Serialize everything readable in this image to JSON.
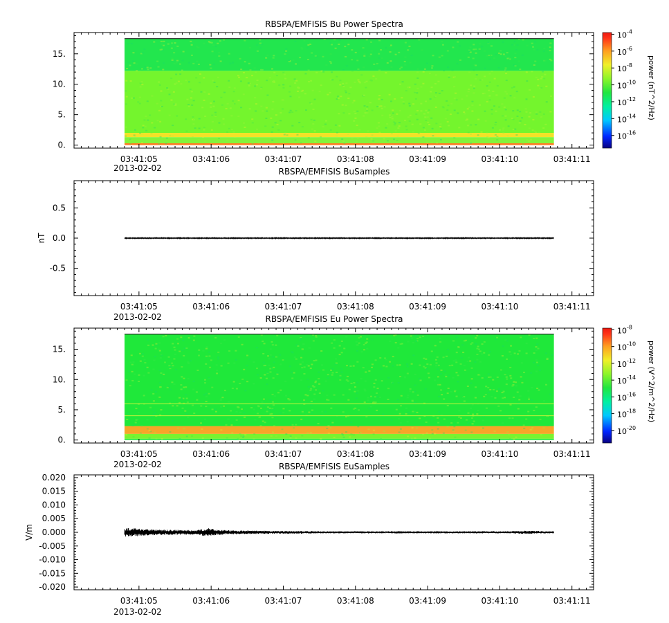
{
  "chart_data": [
    {
      "type": "heatmap",
      "title": "RBSPA/EMFISIS  Bu Power Spectra",
      "ylabel": "",
      "ylim": [
        -0.5,
        18.5
      ],
      "yticks": [
        0,
        5,
        10,
        15
      ],
      "ytick_labels": [
        "0.",
        "5.",
        "10.",
        "15."
      ],
      "x_range": [
        "03:41:04.1",
        "03:41:11.3"
      ],
      "data_x_range": [
        "03:41:04.8",
        "03:41:10.75"
      ],
      "data_y_range": [
        0,
        17.5
      ],
      "xtick_labels": [
        "03:41:05",
        "03:41:06",
        "03:41:07",
        "03:41:08",
        "03:41:09",
        "03:41:10",
        "03:41:11"
      ],
      "date_label": "2013-02-02",
      "colorbar": {
        "label": "power (nT^2/Hz)",
        "scale": "log",
        "range_exp": [
          -17.5,
          -3.8
        ],
        "tick_exponents": [
          -4,
          -6,
          -8,
          -10,
          -12,
          -14,
          -16
        ],
        "tick_labels": [
          "10",
          "10",
          "10",
          "10",
          "10",
          "10",
          "10"
        ],
        "tick_exponent_labels": [
          "-4",
          "-6",
          "-8",
          "-10",
          "-12",
          "-14",
          "-16"
        ]
      },
      "bands": [
        {
          "y_from": 12.2,
          "y_to": 17.5,
          "log_power": -12.6,
          "color": "#22e64e"
        },
        {
          "y_from": 2.0,
          "y_to": 12.2,
          "log_power": -10.6,
          "color": "#74f52d"
        },
        {
          "y_from": 1.3,
          "y_to": 2.0,
          "log_power": -8.5,
          "color": "#f2e227"
        },
        {
          "y_from": 0.3,
          "y_to": 1.3,
          "log_power": -10.3,
          "color": "#83f43a"
        },
        {
          "y_from": 0.0,
          "y_to": 0.3,
          "log_power": -6.0,
          "color": "#ff7a22"
        }
      ]
    },
    {
      "type": "line",
      "title": "RBSPA/EMFISIS  BuSamples",
      "ylabel": "nT",
      "ylim": [
        -0.95,
        0.95
      ],
      "yticks": [
        -0.5,
        0.0,
        0.5
      ],
      "ytick_labels": [
        "-0.5",
        "0.0",
        "0.5"
      ],
      "x_range": [
        "03:41:04.1",
        "03:41:11.3"
      ],
      "xtick_labels": [
        "03:41:05",
        "03:41:06",
        "03:41:07",
        "03:41:08",
        "03:41:09",
        "03:41:10",
        "03:41:11"
      ],
      "date_label": "2013-02-02",
      "series": [
        {
          "x_start": "03:41:04.8",
          "x_end": "03:41:10.75",
          "envelope_x": [
            4.8,
            10.75
          ],
          "envelope_y": [
            0.008,
            0.008
          ]
        }
      ]
    },
    {
      "type": "heatmap",
      "title": "RBSPA/EMFISIS  Eu Power Spectra",
      "ylabel": "",
      "ylim": [
        -0.5,
        18.5
      ],
      "yticks": [
        0,
        5,
        10,
        15
      ],
      "ytick_labels": [
        "0.",
        "5.",
        "10.",
        "15."
      ],
      "x_range": [
        "03:41:04.1",
        "03:41:11.3"
      ],
      "data_x_range": [
        "03:41:04.8",
        "03:41:10.75"
      ],
      "data_y_range": [
        0,
        17.5
      ],
      "xtick_labels": [
        "03:41:05",
        "03:41:06",
        "03:41:07",
        "03:41:08",
        "03:41:09",
        "03:41:10",
        "03:41:11"
      ],
      "date_label": "2013-02-02",
      "colorbar": {
        "label": "power (V^2/m^2/Hz)",
        "scale": "log",
        "range_exp": [
          -21.5,
          -7.8
        ],
        "tick_exponents": [
          -8,
          -10,
          -12,
          -14,
          -16,
          -18,
          -20
        ],
        "tick_labels": [
          "10",
          "10",
          "10",
          "10",
          "10",
          "10",
          "10"
        ],
        "tick_exponent_labels": [
          "-8",
          "-10",
          "-12",
          "-14",
          "-16",
          "-18",
          "-20"
        ]
      },
      "bands": [
        {
          "y_from": 2.3,
          "y_to": 17.5,
          "log_power": -15.5,
          "color": "#1fe83a"
        },
        {
          "y_from": 1.0,
          "y_to": 2.3,
          "log_power": -11.5,
          "color": "#f7a528"
        },
        {
          "y_from": 0.2,
          "y_to": 1.0,
          "log_power": -14.5,
          "color": "#7af330"
        },
        {
          "y_from": 0.0,
          "y_to": 0.2,
          "log_power": -15.5,
          "color": "#1fe83a"
        }
      ],
      "lines": [
        {
          "y": 6.0,
          "color": "#c8f53a"
        },
        {
          "y": 4.0,
          "color": "#c8f53a"
        }
      ]
    },
    {
      "type": "line",
      "title": "RBSPA/EMFISIS  EuSamples",
      "ylabel": "V/m",
      "ylim": [
        -0.021,
        0.021
      ],
      "yticks": [
        -0.02,
        -0.015,
        -0.01,
        -0.005,
        0.0,
        0.005,
        0.01,
        0.015,
        0.02
      ],
      "ytick_labels": [
        "-0.020",
        "-0.015",
        "-0.010",
        "-0.005",
        "0.000",
        "0.005",
        "0.010",
        "0.015",
        "0.020"
      ],
      "x_range": [
        "03:41:04.1",
        "03:41:11.3"
      ],
      "xtick_labels": [
        "03:41:05",
        "03:41:06",
        "03:41:07",
        "03:41:08",
        "03:41:09",
        "03:41:10",
        "03:41:11"
      ],
      "date_label": "2013-02-02",
      "series": [
        {
          "x_start": "03:41:04.8",
          "x_end": "03:41:10.75",
          "envelope_x": [
            4.8,
            5.05,
            5.3,
            5.55,
            5.8,
            5.95,
            6.05,
            6.3,
            6.6,
            6.9,
            7.2,
            7.5,
            8.0,
            8.5,
            9.0,
            9.5,
            9.9,
            10.1,
            10.3,
            10.5,
            10.75
          ],
          "envelope_y": [
            0.0016,
            0.0014,
            0.001,
            0.0009,
            0.0008,
            0.0016,
            0.0011,
            0.0007,
            0.0006,
            0.0005,
            0.0005,
            0.0004,
            0.0003,
            0.0003,
            0.0003,
            0.0003,
            0.0004,
            0.0003,
            0.0006,
            0.0005,
            0.0003
          ]
        }
      ]
    }
  ]
}
